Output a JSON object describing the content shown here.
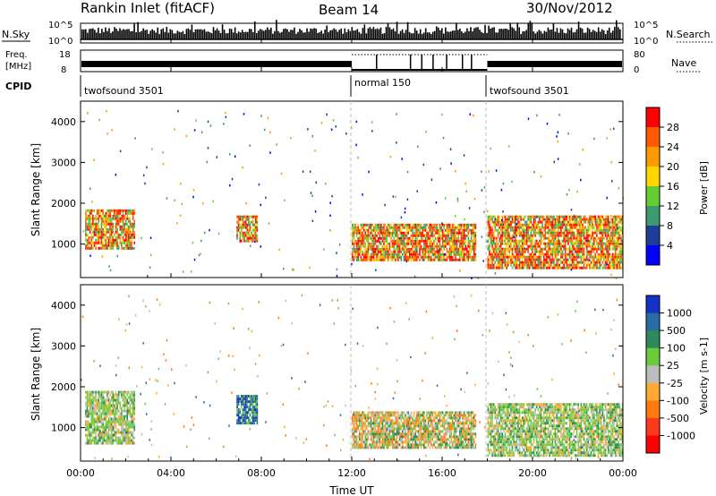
{
  "header": {
    "title": "Rankin Inlet (fitACF)",
    "beam": "Beam 14",
    "date": "30/Nov/2012"
  },
  "strip": {
    "nsky_label": "N.Sky",
    "nsearch_label": "N.Search",
    "nsky_ticks": [
      "10^5",
      "10^0"
    ],
    "nsky_ticks_right": [
      "10^5",
      "10^0"
    ],
    "freq_label_1": "Freq.",
    "freq_label_2": "[MHz]",
    "freq_ticks": [
      "18",
      "8"
    ],
    "nave_ticks": [
      "80",
      "0"
    ],
    "nave_label": "Nave",
    "cpid_label": "CPID",
    "cpid_segments": [
      {
        "label": "twofsound 3501",
        "start_hour": 0,
        "end_hour": 12
      },
      {
        "label": "normal 150",
        "start_hour": 12,
        "end_hour": 18
      },
      {
        "label": "twofsound 3501",
        "start_hour": 18,
        "end_hour": 24
      }
    ]
  },
  "power_colorbar": {
    "label": "Power [dB]",
    "ticks": [
      "28",
      "24",
      "20",
      "16",
      "12",
      "8",
      "4"
    ],
    "colors": [
      "#ff0000",
      "#ff5a00",
      "#ff9a00",
      "#ffd700",
      "#66cc33",
      "#3c9a6e",
      "#1e3c9a",
      "#0000ff"
    ]
  },
  "velocity_colorbar": {
    "label": "Velocity [m s-1]",
    "ticks": [
      "1000",
      "500",
      "100",
      "25",
      "-25",
      "-100",
      "-500",
      "-1000"
    ],
    "colors": [
      "#1432c8",
      "#2a6aa6",
      "#2e8a5a",
      "#6acc3a",
      "#bdbdbd",
      "#ffaa33",
      "#ff7a10",
      "#ff3a1a",
      "#ff0000"
    ]
  },
  "chart_data": [
    {
      "type": "heatmap",
      "panel": "power",
      "title": "Rankin Inlet (fitACF)",
      "xlabel": "Time UT",
      "ylabel": "Slant Range [km]",
      "x_ticks": [
        "00:00",
        "04:00",
        "08:00",
        "12:00",
        "16:00",
        "20:00",
        "00:00"
      ],
      "y_ticks": [
        1000,
        2000,
        3000,
        4000
      ],
      "xlim": [
        0,
        24
      ],
      "ylim": [
        180,
        4500
      ],
      "colorbar_label": "Power [dB]",
      "features": [
        {
          "start_hour": 0.2,
          "end_hour": 2.4,
          "range_low": 900,
          "range_high": 1850,
          "level": "high"
        },
        {
          "start_hour": 6.9,
          "end_hour": 7.8,
          "range_low": 1050,
          "range_high": 1700,
          "level": "high"
        },
        {
          "start_hour": 12.0,
          "end_hour": 17.5,
          "range_low": 600,
          "range_high": 1500,
          "level": "high"
        },
        {
          "start_hour": 18.0,
          "end_hour": 24.0,
          "range_low": 400,
          "range_high": 1700,
          "level": "high"
        }
      ]
    },
    {
      "type": "heatmap",
      "panel": "velocity",
      "xlabel": "Time UT",
      "ylabel": "Slant Range [km]",
      "x_ticks": [
        "00:00",
        "04:00",
        "08:00",
        "12:00",
        "16:00",
        "20:00",
        "00:00"
      ],
      "y_ticks": [
        1000,
        2000,
        3000,
        4000
      ],
      "xlim": [
        0,
        24
      ],
      "ylim": [
        180,
        4500
      ],
      "colorbar_label": "Velocity [m s-1]",
      "features": [
        {
          "start_hour": 0.2,
          "end_hour": 2.4,
          "range_low": 600,
          "range_high": 1900,
          "level": "green"
        },
        {
          "start_hour": 6.9,
          "end_hour": 7.8,
          "range_low": 1100,
          "range_high": 1800,
          "level": "blue"
        },
        {
          "start_hour": 12.0,
          "end_hour": 17.5,
          "range_low": 500,
          "range_high": 1400,
          "level": "orange"
        },
        {
          "start_hour": 18.0,
          "end_hour": 24.0,
          "range_low": 300,
          "range_high": 1600,
          "level": "green"
        }
      ]
    }
  ]
}
